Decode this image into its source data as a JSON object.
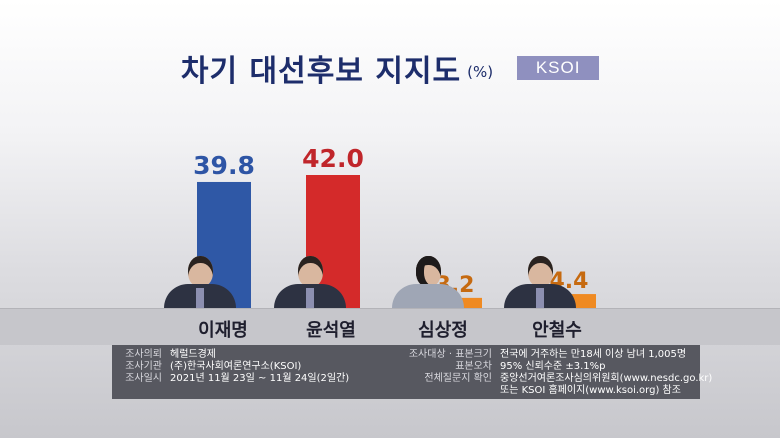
{
  "title": "차기 대선후보 지지도",
  "unit": "(%)",
  "badge": "KSOI",
  "chart_data": {
    "type": "bar",
    "categories": [
      "이재명",
      "윤석열",
      "심상정",
      "안철수"
    ],
    "values": [
      39.8,
      42.0,
      3.2,
      4.4
    ],
    "value_labels": [
      "39.8",
      "42.0",
      "3.2",
      "4.4"
    ],
    "ylim": [
      0,
      42
    ],
    "colors": {
      "blue": "#2f58a6",
      "red": "#d42a2a",
      "orange": "#ef8a22",
      "blue_label": "#2e55a5",
      "red_label": "#c0262b",
      "orange_label": "#c66a10"
    },
    "bar_colors": [
      "#2f58a6",
      "#d42a2a",
      "#ef8a22",
      "#ef8a22"
    ],
    "label_colors": [
      "#2e55a5",
      "#c0262b",
      "#c66a10",
      "#c66a10"
    ]
  },
  "info": {
    "left": [
      {
        "key": "조사의뢰",
        "value": "헤럴드경제"
      },
      {
        "key": "조사기관",
        "value": "(주)한국사회여론연구소(KSOI)"
      },
      {
        "key": "조사일시",
        "value": "2021년 11월 23일 ~ 11월 24일(2일간)"
      }
    ],
    "right": [
      {
        "key": "조사대상 · 표본크기",
        "value": "전국에 거주하는 만18세 이상 남녀 1,005명"
      },
      {
        "key": "표본오차",
        "value": "95% 신뢰수준 ±3.1%p"
      },
      {
        "key": "전체질문지 확인",
        "value": "중앙선거여론조사심의위원회(www.nesdc.go.kr)"
      },
      {
        "key": "",
        "value": "또는 KSOI 홈페이지(www.ksoi.org) 참조"
      }
    ]
  }
}
